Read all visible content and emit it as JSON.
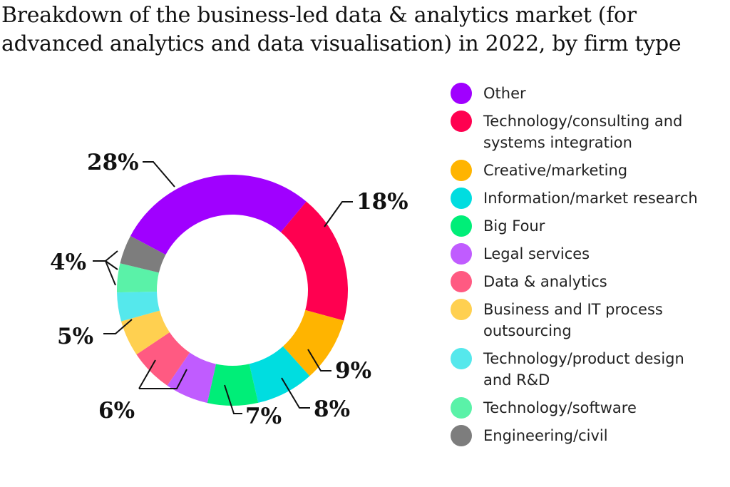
{
  "chart_data": {
    "type": "pie",
    "donut": true,
    "title": "Breakdown of the business-led data & analytics market (for advanced analytics and data visualisation) in 2022, by firm type",
    "legend_position": "right",
    "slices": [
      {
        "label": "Other",
        "value": 28,
        "display": "28%",
        "color": "#a000ff"
      },
      {
        "label": "Technology/consulting and systems integration",
        "value": 18,
        "display": "18%",
        "color": "#ff0050"
      },
      {
        "label": "Creative/marketing",
        "value": 9,
        "display": "9%",
        "color": "#ffb400"
      },
      {
        "label": "Information/market research",
        "value": 8,
        "display": "8%",
        "color": "#00dde0"
      },
      {
        "label": "Big Four",
        "value": 7,
        "display": "7%",
        "color": "#00ee78"
      },
      {
        "label": "Legal services",
        "value": 6,
        "display": "6%",
        "color": "#c05cff"
      },
      {
        "label": "Data & analytics",
        "value": 6,
        "display": "6%",
        "color": "#ff5a82"
      },
      {
        "label": "Business and IT process outsourcing",
        "value": 5,
        "display": "5%",
        "color": "#ffd050"
      },
      {
        "label": "Technology/product design and R&D",
        "value": 4,
        "display": "4%",
        "color": "#55e8ec"
      },
      {
        "label": "Technology/software",
        "value": 4,
        "display": "4%",
        "color": "#5af2a8"
      },
      {
        "label": "Engineering/civil",
        "value": 4,
        "display": "4%",
        "color": "#7d7d7d"
      }
    ]
  }
}
